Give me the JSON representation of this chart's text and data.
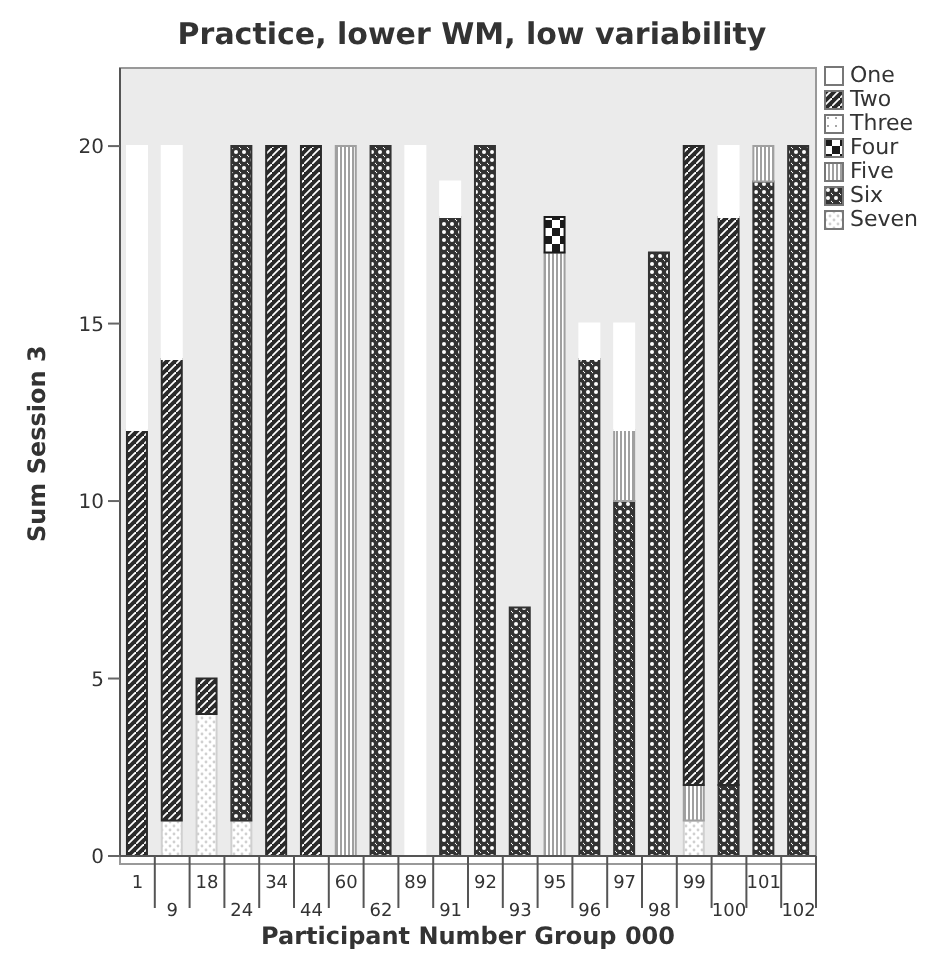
{
  "chart_data": {
    "type": "bar",
    "title": "Practice, lower WM, low variability",
    "xlabel": "Participant Number Group 000",
    "ylabel": "Sum Session 3",
    "categories": [
      "1",
      "9",
      "18",
      "24",
      "34",
      "44",
      "60",
      "62",
      "89",
      "91",
      "92",
      "93",
      "95",
      "96",
      "97",
      "98",
      "99",
      "100",
      "101",
      "102"
    ],
    "series": [
      {
        "name": "Seven",
        "color": "#d0d0d0",
        "values": [
          0,
          1,
          4,
          1,
          0,
          0,
          0,
          0,
          0,
          0,
          0,
          0,
          0,
          0,
          0,
          0,
          1,
          0,
          0,
          0
        ]
      },
      {
        "name": "Six",
        "color": "#333333",
        "values": [
          0,
          0,
          0,
          19,
          0,
          0,
          0,
          20,
          0,
          18,
          20,
          7,
          0,
          14,
          10,
          17,
          0,
          2,
          19,
          20
        ]
      },
      {
        "name": "Five",
        "color": "#a0a0a0",
        "values": [
          0,
          0,
          0,
          0,
          0,
          0,
          20,
          0,
          0,
          0,
          0,
          0,
          17,
          0,
          2,
          0,
          1,
          0,
          1,
          0
        ]
      },
      {
        "name": "Four",
        "color": "#1a1a1a",
        "values": [
          0,
          0,
          0,
          0,
          0,
          0,
          0,
          0,
          0,
          0,
          0,
          0,
          1,
          0,
          0,
          0,
          0,
          0,
          0,
          0
        ]
      },
      {
        "name": "Three",
        "color": "#f0f0f0",
        "values": [
          0,
          0,
          0,
          0,
          0,
          0,
          0,
          0,
          0,
          0,
          0,
          0,
          0,
          0,
          0,
          0,
          0,
          0,
          0,
          0
        ]
      },
      {
        "name": "Two",
        "color": "#2a2a2a",
        "values": [
          12,
          13,
          1,
          0,
          20,
          20,
          0,
          0,
          0,
          0,
          0,
          0,
          0,
          0,
          0,
          0,
          18,
          16,
          0,
          0
        ]
      },
      {
        "name": "One",
        "color": "#ffffff",
        "values": [
          8,
          6,
          0,
          0,
          0,
          0,
          0,
          0,
          20,
          1,
          0,
          0,
          0,
          1,
          3,
          0,
          0,
          2,
          0,
          0
        ]
      }
    ],
    "stacked": true,
    "ylim": [
      0,
      22.2
    ],
    "yticks": [
      0,
      5,
      10,
      15,
      20
    ],
    "grid": false,
    "legend": "top right"
  }
}
